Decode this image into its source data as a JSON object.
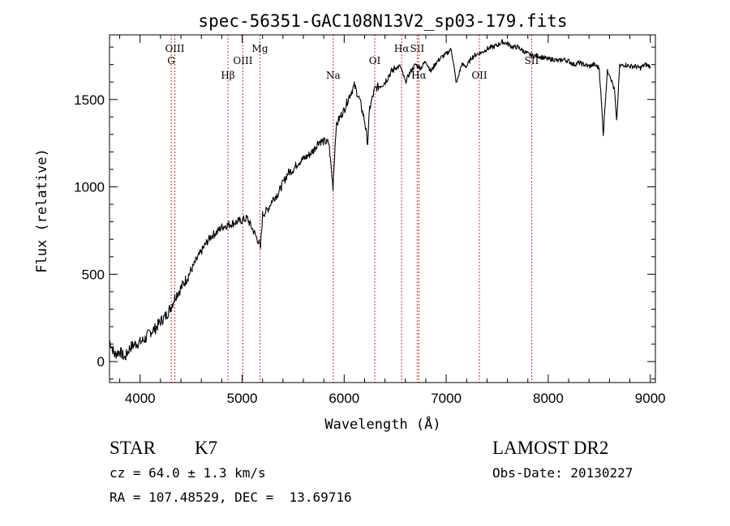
{
  "chart_data": {
    "type": "line",
    "title": "spec-56351-GAC108N13V2_sp03-179.fits",
    "xlabel": "Wavelength (Å)",
    "ylabel": "Flux (relative)",
    "xlim": [
      3700,
      9050
    ],
    "ylim": [
      -120,
      1870
    ],
    "xticks": [
      4000,
      5000,
      6000,
      7000,
      8000,
      9000
    ],
    "yticks": [
      0,
      500,
      1000,
      1500
    ],
    "grid": false,
    "line_color": "#000000",
    "marker_color": "#cc3333",
    "series": [
      {
        "x": [
          3700,
          3750,
          3800,
          3850,
          3900,
          3950,
          4000,
          4050,
          4100,
          4150,
          4200,
          4250,
          4300,
          4350,
          4400,
          4450,
          4500,
          4550,
          4600,
          4650,
          4700,
          4750,
          4800,
          4850,
          4900,
          4950,
          5000,
          5050,
          5100,
          5150,
          5180,
          5200,
          5250,
          5300,
          5350,
          5400,
          5450,
          5500,
          5550,
          5600,
          5650,
          5700,
          5750,
          5800,
          5850,
          5890,
          5920,
          5950,
          6000,
          6050,
          6100,
          6150,
          6200,
          6230,
          6250,
          6300,
          6350,
          6400,
          6450,
          6500,
          6550,
          6600,
          6650,
          6700,
          6750,
          6800,
          6850,
          6900,
          6950,
          7000,
          7050,
          7100,
          7150,
          7200,
          7250,
          7300,
          7350,
          7400,
          7450,
          7500,
          7550,
          7600,
          7650,
          7700,
          7750,
          7800,
          7850,
          7900,
          7950,
          8000,
          8050,
          8100,
          8150,
          8200,
          8250,
          8300,
          8350,
          8400,
          8450,
          8500,
          8540,
          8560,
          8580,
          8600,
          8650,
          8670,
          8700,
          8750,
          8800,
          8850,
          8900,
          8950,
          9000
        ],
        "y": [
          120,
          40,
          60,
          20,
          80,
          100,
          110,
          130,
          170,
          190,
          230,
          260,
          310,
          380,
          420,
          470,
          520,
          580,
          630,
          680,
          720,
          740,
          770,
          780,
          790,
          800,
          810,
          820,
          760,
          700,
          650,
          840,
          870,
          930,
          960,
          1020,
          1080,
          1100,
          1140,
          1160,
          1180,
          1210,
          1260,
          1260,
          1250,
          1000,
          1340,
          1390,
          1440,
          1520,
          1580,
          1500,
          1380,
          1250,
          1450,
          1560,
          1580,
          1600,
          1650,
          1680,
          1690,
          1600,
          1660,
          1700,
          1680,
          1720,
          1660,
          1710,
          1740,
          1760,
          1790,
          1590,
          1700,
          1690,
          1740,
          1760,
          1770,
          1790,
          1800,
          1810,
          1830,
          1820,
          1800,
          1800,
          1780,
          1760,
          1750,
          1750,
          1740,
          1730,
          1730,
          1720,
          1730,
          1720,
          1700,
          1710,
          1700,
          1690,
          1700,
          1680,
          1300,
          1500,
          1660,
          1650,
          1550,
          1370,
          1690,
          1700,
          1690,
          1690,
          1680,
          1700,
          1690
        ]
      }
    ],
    "line_markers": [
      {
        "label": "OIII",
        "x": 4340
      },
      {
        "label": "G",
        "x": 4305
      },
      {
        "label": "Hβ",
        "x": 4861
      },
      {
        "label": "OIII",
        "x": 5007
      },
      {
        "label": "Mg",
        "x": 5175
      },
      {
        "label": "Na",
        "x": 5893
      },
      {
        "label": "OI",
        "x": 6300
      },
      {
        "label": "Hα",
        "x": 6563
      },
      {
        "label": "SII",
        "x": 6716
      },
      {
        "label": "Hα",
        "x": 6732
      },
      {
        "label": "OII",
        "x": 7325
      },
      {
        "label": "SII",
        "x": 7838
      }
    ]
  },
  "info": {
    "object_type": "STAR",
    "subclass": "K7",
    "survey": "LAMOST DR2",
    "cz": "cz = 64.0 ± 1.3 km/s",
    "obs_date": "Obs-Date: 20130227",
    "coords": "RA = 107.48529, DEC =  13.69716"
  }
}
